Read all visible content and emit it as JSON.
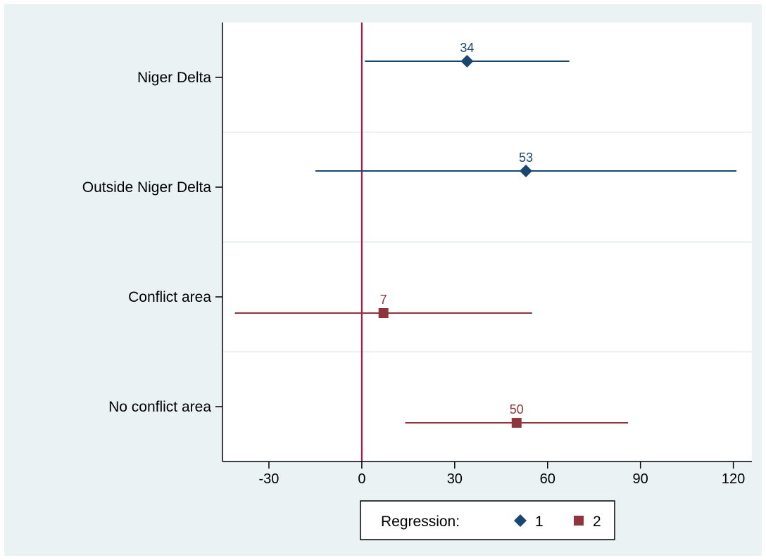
{
  "chart_data": {
    "type": "coefficient-plot",
    "xlim": [
      -45,
      126
    ],
    "xticks": [
      -30,
      0,
      30,
      60,
      90,
      120
    ],
    "reference_line": 0,
    "categories": [
      "Niger Delta",
      "Outside Niger Delta",
      "Conflict area",
      "No conflict area"
    ],
    "series": [
      {
        "name": "1",
        "marker": "diamond",
        "color": "#1a476f",
        "points": [
          {
            "category": "Niger Delta",
            "value": 34,
            "label": "34",
            "ci": [
              1,
              67
            ]
          },
          {
            "category": "Outside Niger Delta",
            "value": 53,
            "label": "53",
            "ci": [
              -15,
              121
            ]
          }
        ]
      },
      {
        "name": "2",
        "marker": "square",
        "color": "#90353b",
        "points": [
          {
            "category": "Conflict area",
            "value": 7,
            "label": "7",
            "ci": [
              -41,
              55
            ]
          },
          {
            "category": "No conflict area",
            "value": 50,
            "label": "50",
            "ci": [
              14,
              86
            ]
          }
        ]
      }
    ],
    "legend": {
      "title": "Regression:",
      "position": "bottom"
    },
    "reference_line_color": "#c10534",
    "grid": true
  }
}
